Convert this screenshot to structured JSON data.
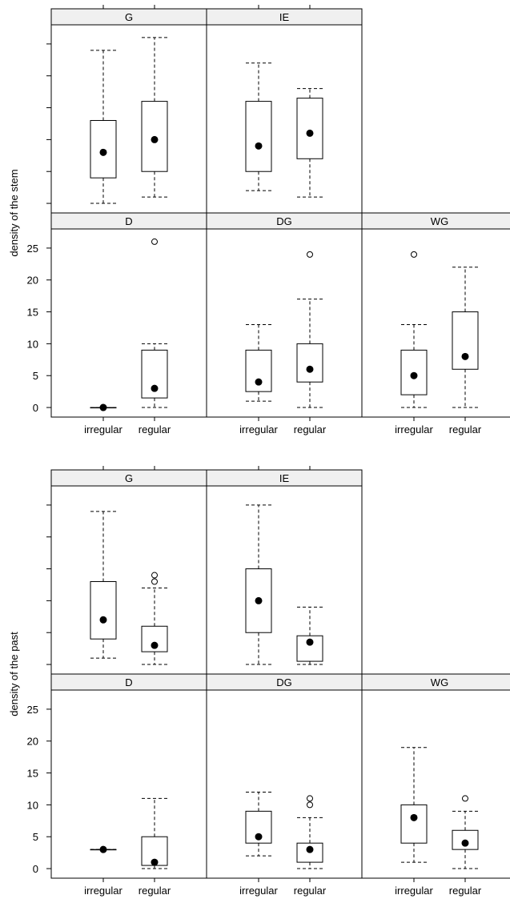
{
  "chart_data": [
    {
      "type": "box",
      "ylabel": "density of the stem",
      "categories": [
        "irregular",
        "regular"
      ],
      "y_ticks": [
        0,
        5,
        10,
        15,
        20,
        25
      ],
      "ylim": [
        -1.5,
        28
      ],
      "layout": "lattice 3 columns x 2 rows; top row G, IE; bottom row D, DG, WG",
      "panels": [
        {
          "strip": "G",
          "boxes": [
            {
              "category": "irregular",
              "whisker_low": 0,
              "q1": 4,
              "median": 8,
              "q3": 13,
              "whisker_high": 24,
              "outliers": []
            },
            {
              "category": "regular",
              "whisker_low": 1,
              "q1": 5,
              "median": 10,
              "q3": 16,
              "whisker_high": 26,
              "outliers": []
            }
          ]
        },
        {
          "strip": "IE",
          "boxes": [
            {
              "category": "irregular",
              "whisker_low": 2,
              "q1": 5,
              "median": 9,
              "q3": 16,
              "whisker_high": 22,
              "outliers": []
            },
            {
              "category": "regular",
              "whisker_low": 1,
              "q1": 7,
              "median": 11,
              "q3": 16.5,
              "whisker_high": 18,
              "outliers": []
            }
          ]
        },
        {
          "strip": "D",
          "boxes": [
            {
              "category": "irregular",
              "whisker_low": 0,
              "q1": 0,
              "median": 0,
              "q3": 0,
              "whisker_high": 0,
              "outliers": []
            },
            {
              "category": "regular",
              "whisker_low": 0,
              "q1": 1.5,
              "median": 3,
              "q3": 9,
              "whisker_high": 10,
              "outliers": [
                26
              ]
            }
          ]
        },
        {
          "strip": "DG",
          "boxes": [
            {
              "category": "irregular",
              "whisker_low": 1,
              "q1": 2.5,
              "median": 4,
              "q3": 9,
              "whisker_high": 13,
              "outliers": []
            },
            {
              "category": "regular",
              "whisker_low": 0,
              "q1": 4,
              "median": 6,
              "q3": 10,
              "whisker_high": 17,
              "outliers": [
                24
              ]
            }
          ]
        },
        {
          "strip": "WG",
          "boxes": [
            {
              "category": "irregular",
              "whisker_low": 0,
              "q1": 2,
              "median": 5,
              "q3": 9,
              "whisker_high": 13,
              "outliers": [
                24
              ]
            },
            {
              "category": "regular",
              "whisker_low": 0,
              "q1": 6,
              "median": 8,
              "q3": 15,
              "whisker_high": 22,
              "outliers": []
            }
          ]
        }
      ]
    },
    {
      "type": "box",
      "ylabel": "density of the past",
      "categories": [
        "irregular",
        "regular"
      ],
      "y_ticks": [
        0,
        5,
        10,
        15,
        20,
        25
      ],
      "ylim": [
        -1.5,
        28
      ],
      "layout": "lattice 3 columns x 2 rows; top row G, IE; bottom row D, DG, WG",
      "panels": [
        {
          "strip": "G",
          "boxes": [
            {
              "category": "irregular",
              "whisker_low": 1,
              "q1": 4,
              "median": 7,
              "q3": 13,
              "whisker_high": 24,
              "outliers": []
            },
            {
              "category": "regular",
              "whisker_low": 0,
              "q1": 2,
              "median": 3,
              "q3": 6,
              "whisker_high": 12,
              "outliers": [
                14,
                13
              ]
            }
          ]
        },
        {
          "strip": "IE",
          "boxes": [
            {
              "category": "irregular",
              "whisker_low": 0,
              "q1": 5,
              "median": 10,
              "q3": 15,
              "whisker_high": 25,
              "outliers": []
            },
            {
              "category": "regular",
              "whisker_low": 0,
              "q1": 0.5,
              "median": 3.5,
              "q3": 4.5,
              "whisker_high": 9,
              "outliers": []
            }
          ]
        },
        {
          "strip": "D",
          "boxes": [
            {
              "category": "irregular",
              "whisker_low": 3,
              "q1": 3,
              "median": 3,
              "q3": 3,
              "whisker_high": 3,
              "outliers": []
            },
            {
              "category": "regular",
              "whisker_low": 0,
              "q1": 0.5,
              "median": 1,
              "q3": 5,
              "whisker_high": 11,
              "outliers": []
            }
          ]
        },
        {
          "strip": "DG",
          "boxes": [
            {
              "category": "irregular",
              "whisker_low": 2,
              "q1": 4,
              "median": 5,
              "q3": 9,
              "whisker_high": 12,
              "outliers": []
            },
            {
              "category": "regular",
              "whisker_low": 0,
              "q1": 1,
              "median": 3,
              "q3": 4,
              "whisker_high": 8,
              "outliers": [
                10,
                11
              ]
            }
          ]
        },
        {
          "strip": "WG",
          "boxes": [
            {
              "category": "irregular",
              "whisker_low": 1,
              "q1": 4,
              "median": 8,
              "q3": 10,
              "whisker_high": 19,
              "outliers": []
            },
            {
              "category": "regular",
              "whisker_low": 0,
              "q1": 3,
              "median": 4,
              "q3": 6,
              "whisker_high": 9,
              "outliers": [
                11
              ]
            }
          ]
        }
      ]
    }
  ],
  "colors": {
    "strip_background": "#f0f0f0",
    "ink": "#000000",
    "background": "#ffffff"
  }
}
